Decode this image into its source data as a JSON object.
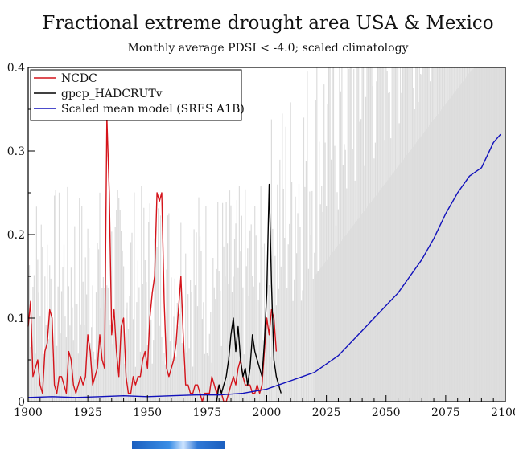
{
  "chart_data": {
    "type": "line",
    "title": "Fractional extreme drought area USA & Mexico",
    "subtitle": "Monthly average PDSI < -4.0; scaled climatology",
    "xlabel": "",
    "ylabel": "",
    "xlim": [
      1900,
      2100
    ],
    "ylim": [
      0,
      0.4
    ],
    "x_ticks": [
      "1900",
      "1925",
      "1950",
      "1975",
      "2000",
      "2025",
      "2050",
      "2075",
      "2100"
    ],
    "y_ticks": [
      "0",
      "0.1",
      "0.2",
      "0.3",
      "0.4"
    ],
    "grid": false,
    "legend_position": "top-left",
    "series": [
      {
        "name": "NCDC",
        "color": "#d4141b",
        "x": [
          1900,
          1901,
          1902,
          1903,
          1904,
          1905,
          1906,
          1907,
          1908,
          1909,
          1910,
          1911,
          1912,
          1913,
          1914,
          1915,
          1916,
          1917,
          1918,
          1919,
          1920,
          1921,
          1922,
          1923,
          1924,
          1925,
          1926,
          1927,
          1928,
          1929,
          1930,
          1931,
          1932,
          1933,
          1934,
          1935,
          1936,
          1937,
          1938,
          1939,
          1940,
          1941,
          1942,
          1943,
          1944,
          1945,
          1946,
          1947,
          1948,
          1949,
          1950,
          1951,
          1952,
          1953,
          1954,
          1955,
          1956,
          1957,
          1958,
          1959,
          1960,
          1961,
          1962,
          1963,
          1964,
          1965,
          1966,
          1967,
          1968,
          1969,
          1970,
          1971,
          1972,
          1973,
          1974,
          1975,
          1976,
          1977,
          1978,
          1979,
          1980,
          1981,
          1982,
          1983,
          1984,
          1985,
          1986,
          1987,
          1988,
          1989,
          1990,
          1991,
          1992,
          1993,
          1994,
          1995,
          1996,
          1997,
          1998,
          1999,
          2000,
          2001,
          2002,
          2003,
          2004
        ],
        "values": [
          0.09,
          0.12,
          0.03,
          0.04,
          0.05,
          0.02,
          0.01,
          0.06,
          0.07,
          0.11,
          0.1,
          0.02,
          0.01,
          0.03,
          0.03,
          0.02,
          0.01,
          0.06,
          0.05,
          0.02,
          0.01,
          0.02,
          0.03,
          0.02,
          0.03,
          0.08,
          0.06,
          0.02,
          0.03,
          0.04,
          0.08,
          0.05,
          0.04,
          0.34,
          0.25,
          0.08,
          0.11,
          0.06,
          0.03,
          0.09,
          0.1,
          0.03,
          0.01,
          0.01,
          0.03,
          0.02,
          0.03,
          0.03,
          0.05,
          0.06,
          0.04,
          0.1,
          0.13,
          0.15,
          0.25,
          0.24,
          0.25,
          0.12,
          0.04,
          0.03,
          0.04,
          0.05,
          0.07,
          0.11,
          0.15,
          0.08,
          0.02,
          0.02,
          0.01,
          0.01,
          0.02,
          0.02,
          0.01,
          0.0,
          0.01,
          0.01,
          0.01,
          0.03,
          0.02,
          0.01,
          0.02,
          0.01,
          0.0,
          0.0,
          0.01,
          0.02,
          0.03,
          0.02,
          0.04,
          0.05,
          0.03,
          0.02,
          0.02,
          0.02,
          0.01,
          0.01,
          0.02,
          0.01,
          0.02,
          0.06,
          0.1,
          0.08,
          0.11,
          0.1,
          0.06
        ]
      },
      {
        "name": "gpcp_HADCRUTv",
        "color": "#000000",
        "x": [
          1979,
          1980,
          1981,
          1982,
          1983,
          1984,
          1985,
          1986,
          1987,
          1988,
          1989,
          1990,
          1991,
          1992,
          1993,
          1994,
          1995,
          1996,
          1997,
          1998,
          1999,
          2000,
          2001,
          2002,
          2003,
          2004,
          2005,
          2006
        ],
        "values": [
          0.0,
          0.02,
          0.01,
          0.02,
          0.03,
          0.05,
          0.08,
          0.1,
          0.06,
          0.09,
          0.05,
          0.03,
          0.04,
          0.02,
          0.04,
          0.08,
          0.06,
          0.05,
          0.04,
          0.03,
          0.07,
          0.13,
          0.26,
          0.14,
          0.05,
          0.03,
          0.02,
          0.01
        ]
      },
      {
        "name": "Scaled mean model (SRES A1B)",
        "color": "#1111bb",
        "x": [
          1900,
          1910,
          1920,
          1930,
          1940,
          1950,
          1960,
          1970,
          1980,
          1990,
          2000,
          2005,
          2010,
          2015,
          2020,
          2025,
          2030,
          2035,
          2040,
          2045,
          2050,
          2055,
          2060,
          2065,
          2070,
          2075,
          2080,
          2085,
          2090,
          2095,
          2098
        ],
        "values": [
          0.005,
          0.006,
          0.005,
          0.006,
          0.007,
          0.006,
          0.007,
          0.008,
          0.008,
          0.01,
          0.015,
          0.02,
          0.025,
          0.03,
          0.035,
          0.045,
          0.055,
          0.07,
          0.085,
          0.1,
          0.115,
          0.13,
          0.15,
          0.17,
          0.195,
          0.225,
          0.25,
          0.27,
          0.28,
          0.31,
          0.32
        ]
      }
    ]
  },
  "colors": {
    "background_band": "#dcdcdc"
  }
}
